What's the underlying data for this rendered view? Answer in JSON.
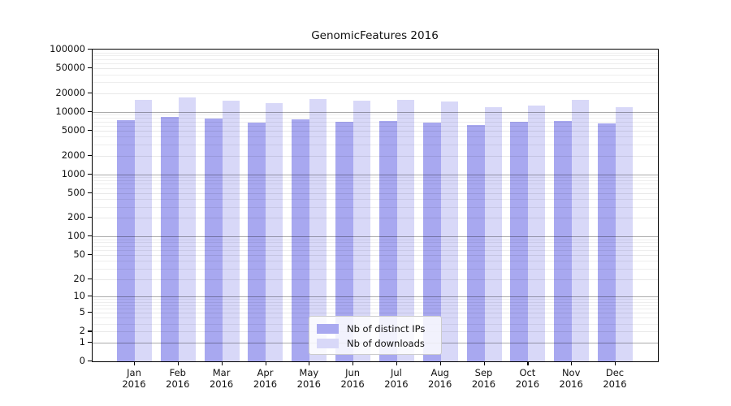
{
  "chart_data": {
    "type": "bar",
    "title": "GenomicFeatures 2016",
    "categories": [
      "Jan",
      "Feb",
      "Mar",
      "Apr",
      "May",
      "Jun",
      "Jul",
      "Aug",
      "Sep",
      "Oct",
      "Nov",
      "Dec"
    ],
    "category_second_line": "2016",
    "series": [
      {
        "name": "Nb of distinct IPs",
        "color": "#a8a8f0",
        "values": [
          7300,
          8400,
          7900,
          6800,
          7500,
          7000,
          7100,
          6800,
          6200,
          6900,
          7100,
          6500
        ]
      },
      {
        "name": "Nb of downloads",
        "color": "#d8d8f8",
        "values": [
          15400,
          17000,
          15200,
          14000,
          16200,
          15100,
          15400,
          14600,
          12000,
          12700,
          15400,
          11800
        ]
      }
    ],
    "yscale": "log1p",
    "ylim": [
      0,
      100000
    ],
    "yticks": [
      0,
      1,
      2,
      5,
      10,
      20,
      50,
      100,
      200,
      500,
      1000,
      2000,
      5000,
      10000,
      20000,
      50000,
      100000
    ],
    "ytick_labels": [
      "0",
      "1",
      "2",
      "5",
      "10",
      "20",
      "50",
      "100",
      "200",
      "500",
      "1000",
      "2000",
      "5000",
      "10000",
      "20000",
      "50000",
      "100000"
    ],
    "grid": "horizontal major+minor, gridlines visible over bars",
    "legend_position": "lower center",
    "colors": {
      "axis": "#000000",
      "grid_major": "#ababab",
      "grid_minor": "#ededed",
      "legend_border": "#cccccc",
      "text": "#111111"
    }
  },
  "legend": {
    "items": [
      {
        "label": "Nb of distinct IPs"
      },
      {
        "label": "Nb of downloads"
      }
    ]
  }
}
